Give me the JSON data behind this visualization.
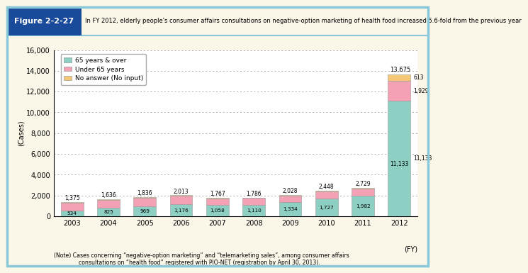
{
  "years": [
    "2003",
    "2004",
    "2005",
    "2006",
    "2007",
    "2008",
    "2009",
    "2010",
    "2011",
    "2012"
  ],
  "xlabel_fy": "(FY)",
  "elderly_65over": [
    534,
    825,
    969,
    1176,
    1058,
    1110,
    1334,
    1727,
    1982,
    11133
  ],
  "under_65": [
    790,
    754,
    818,
    782,
    664,
    635,
    648,
    669,
    684,
    1929
  ],
  "no_answer": [
    51,
    57,
    49,
    55,
    45,
    41,
    46,
    52,
    63,
    613
  ],
  "totals": [
    1375,
    1636,
    1836,
    2013,
    1767,
    1786,
    2028,
    2448,
    2729,
    13675
  ],
  "color_65over": "#8ecfc4",
  "color_under65": "#f4a0b5",
  "color_noanswer": "#f5c878",
  "legend_65over": "65 years & over",
  "legend_under65": "Under 65 years",
  "legend_noanswer": "No answer (No input)",
  "ylabel": "(Cases)",
  "ylim": [
    0,
    16000
  ],
  "yticks": [
    0,
    2000,
    4000,
    6000,
    8000,
    10000,
    12000,
    14000,
    16000
  ],
  "title_box_text": "Figure 2-2-27",
  "title_main": "In FY 2012, elderly people's consumer affairs consultations on negative-option marketing of health food increased 5.6-fold from the previous year",
  "note_text": "(Note) Cases concerning “negative-option marketing” and “telemarketing sales”, among consumer affairs\n              consultations on “health food” registered with PIO-NET (registration by April 30, 2013).",
  "bg_color": "#faf6e8",
  "header_bg": "#1a4a9a",
  "plot_bg": "#ffffff",
  "grid_color": "#aaaaaa",
  "outer_border_color": "#88c8d8",
  "bar_edge_color": "#999999"
}
